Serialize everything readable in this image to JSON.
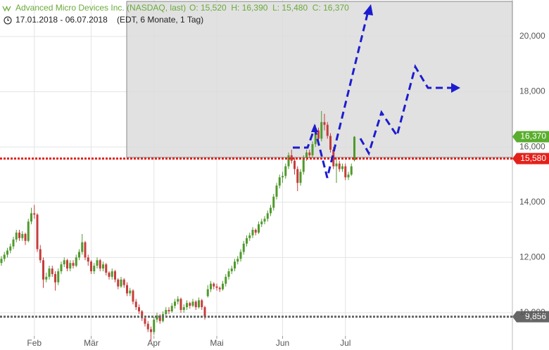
{
  "chart_data": {
    "type": "candlestick",
    "title": "Advanced Micro Devices Inc. (NASDAQ, last)",
    "ohlc_text": "O: 15,520  H: 16,390  L: 15,480  C: 16,370",
    "date_range": "17.01.2018 - 06.07.2018",
    "period_text": "(EDT, 6 Monate, 1 Tag)",
    "up_color": "#4f9a2c",
    "down_color": "#c63c3c",
    "grid": true,
    "ylim": [
      8650,
      21320
    ],
    "yticks": [
      {
        "value": 10000,
        "label": "10,000"
      },
      {
        "value": 12000,
        "label": "12,000"
      },
      {
        "value": 14000,
        "label": "14,000"
      },
      {
        "value": 16000,
        "label": "16,000"
      },
      {
        "value": 18000,
        "label": "18,000"
      },
      {
        "value": 20000,
        "label": "20,000"
      }
    ],
    "xticks": [
      {
        "value": 11,
        "label": "Feb"
      },
      {
        "value": 30,
        "label": "Mär"
      },
      {
        "value": 51,
        "label": "Apr"
      },
      {
        "value": 72,
        "label": "Mai"
      },
      {
        "value": 94,
        "label": "Jun"
      },
      {
        "value": 115,
        "label": "Jul"
      }
    ],
    "price_lines": [
      {
        "value": 15580,
        "label": "15,580",
        "color": "#e3211b"
      },
      {
        "value": 9856,
        "label": "9,856",
        "color": "#666666"
      }
    ],
    "last_price": {
      "value": 16370,
      "label": "16,370",
      "color": "#5aae2e"
    },
    "open": [
      11800,
      11950,
      12100,
      12250,
      12400,
      12650,
      12900,
      12700,
      12850,
      12600,
      13300,
      13600,
      13550,
      12300,
      11900,
      11200,
      11300,
      11600,
      11400,
      11100,
      11500,
      11750,
      11900,
      11600,
      11800,
      11700,
      12000,
      12200,
      12550,
      12000,
      11850,
      11500,
      11700,
      11900,
      11600,
      11750,
      11450,
      11300,
      11500,
      11200,
      10950,
      11200,
      11000,
      10700,
      10800,
      10400,
      10200,
      10050,
      9800,
      9600,
      9400,
      9300,
      9750,
      9900,
      9700,
      9950,
      10100,
      10050,
      10250,
      10400,
      10500,
      10100,
      10200,
      10350,
      10250,
      10400,
      10200,
      10450,
      10200,
      10600,
      10850,
      11050,
      10950,
      10900,
      10850,
      11050,
      11300,
      11500,
      11600,
      11850,
      11950,
      12200,
      12500,
      12700,
      12800,
      13000,
      12900,
      13200,
      13300,
      13400,
      13600,
      13800,
      14200,
      14600,
      14900,
      14950,
      15300,
      15700,
      15500,
      15200,
      14700,
      15100,
      15600,
      15800,
      15700,
      16100,
      16600,
      16300,
      16900,
      16800,
      16400,
      15900,
      15300,
      15400,
      15200,
      15300,
      14900,
      15000,
      15520
    ],
    "high": [
      12050,
      12200,
      12350,
      12500,
      12750,
      13000,
      13000,
      12950,
      12900,
      13400,
      13800,
      13900,
      13600,
      12450,
      12000,
      11450,
      11700,
      11700,
      11500,
      11600,
      11850,
      12000,
      11950,
      11900,
      11900,
      12100,
      12300,
      12850,
      12600,
      12100,
      11900,
      11800,
      12000,
      11950,
      11850,
      11800,
      11500,
      11600,
      11550,
      11250,
      11300,
      11250,
      11100,
      10900,
      10850,
      10500,
      10300,
      10100,
      9900,
      9700,
      9500,
      9850,
      10000,
      9950,
      10050,
      10200,
      10200,
      10350,
      10500,
      10600,
      10550,
      10300,
      10450,
      10400,
      10500,
      10450,
      10550,
      10500,
      10250,
      11000,
      11150,
      11100,
      11050,
      10950,
      11150,
      11400,
      11600,
      11700,
      11950,
      12050,
      12300,
      12600,
      12800,
      12900,
      13100,
      13050,
      13300,
      13400,
      13500,
      13700,
      13900,
      14300,
      14700,
      15000,
      15100,
      15400,
      15800,
      15900,
      15600,
      15300,
      15200,
      15700,
      15900,
      15900,
      16200,
      16800,
      16700,
      17300,
      17200,
      16900,
      16500,
      16000,
      15600,
      15500,
      15400,
      15400,
      15100,
      15400,
      16390
    ],
    "low": [
      11700,
      11850,
      12000,
      12150,
      12300,
      12550,
      12600,
      12600,
      12450,
      12550,
      13200,
      13400,
      12200,
      11800,
      10900,
      11100,
      11200,
      11300,
      10800,
      11000,
      11400,
      11650,
      11500,
      11500,
      11600,
      11650,
      11900,
      12100,
      11900,
      11700,
      11400,
      11400,
      11600,
      11500,
      11500,
      11350,
      11200,
      11200,
      11100,
      10850,
      10900,
      10900,
      10600,
      10600,
      10300,
      10100,
      9950,
      9700,
      9500,
      9300,
      9000,
      9200,
      9650,
      9600,
      9650,
      9850,
      9950,
      10000,
      10150,
      10300,
      10000,
      10000,
      10100,
      10150,
      10200,
      10100,
      10150,
      10100,
      9750,
      10550,
      10750,
      10850,
      10800,
      10750,
      10800,
      10950,
      11200,
      11400,
      11500,
      11750,
      11850,
      12100,
      12400,
      12600,
      12700,
      12800,
      12850,
      13100,
      13200,
      13300,
      13500,
      13700,
      14100,
      14500,
      14700,
      14850,
      15200,
      15400,
      15000,
      14400,
      14600,
      15000,
      15500,
      15600,
      15600,
      16000,
      16200,
      16200,
      16600,
      16300,
      15800,
      15200,
      14700,
      15100,
      15100,
      14800,
      14800,
      14950,
      15480
    ],
    "close": [
      11950,
      12100,
      12250,
      12400,
      12650,
      12900,
      12700,
      12850,
      12600,
      13300,
      13600,
      13550,
      12300,
      11900,
      11200,
      11300,
      11600,
      11400,
      11100,
      11500,
      11750,
      11900,
      11600,
      11800,
      11700,
      12000,
      12200,
      12550,
      12000,
      11850,
      11500,
      11700,
      11900,
      11600,
      11750,
      11450,
      11300,
      11500,
      11200,
      10950,
      11200,
      11000,
      10700,
      10800,
      10400,
      10200,
      10050,
      9800,
      9600,
      9400,
      9300,
      9750,
      9900,
      9700,
      9950,
      10100,
      10050,
      10250,
      10400,
      10500,
      10100,
      10200,
      10350,
      10250,
      10400,
      10200,
      10450,
      10200,
      9850,
      10850,
      11050,
      10950,
      10900,
      10850,
      11050,
      11300,
      11500,
      11600,
      11850,
      11950,
      12200,
      12500,
      12700,
      12800,
      13000,
      12900,
      13200,
      13300,
      13400,
      13600,
      13800,
      14200,
      14600,
      14900,
      14950,
      15300,
      15700,
      15500,
      15200,
      14700,
      15100,
      15600,
      15800,
      15700,
      16100,
      16600,
      16300,
      16900,
      16800,
      16400,
      15900,
      15300,
      15400,
      15200,
      15300,
      14900,
      15000,
      15300,
      16370
    ]
  }
}
